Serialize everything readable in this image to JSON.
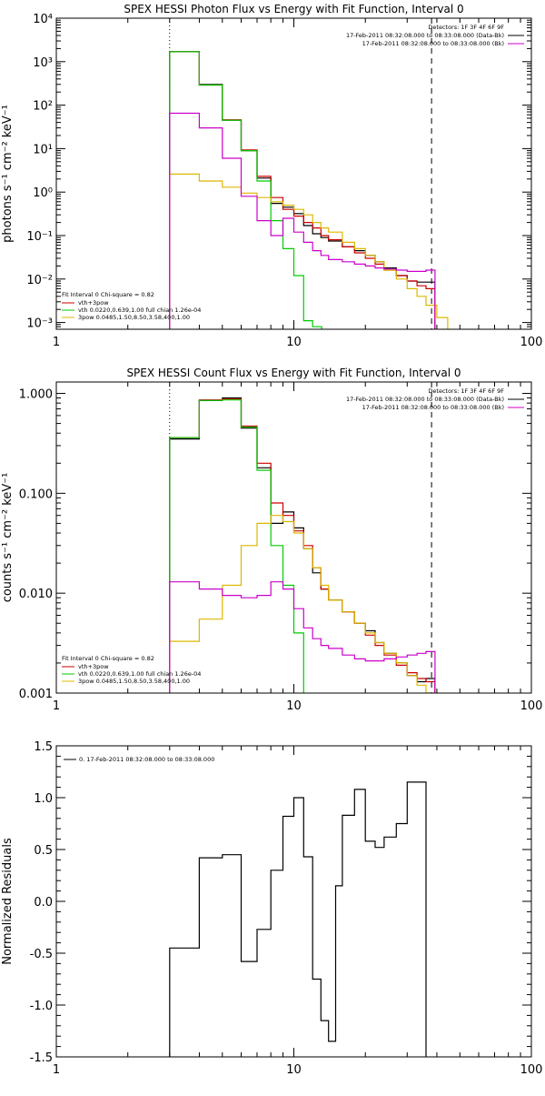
{
  "chart_data": [
    {
      "type": "line",
      "step": true,
      "title": "SPEX HESSI Photon Flux vs Energy with Fit Function, Interval 0",
      "ylabel": "photons s⁻¹ cm⁻² keV⁻¹",
      "xlabel": "",
      "xscale": "log",
      "yscale": "log",
      "xlim": [
        1,
        100
      ],
      "ylim": [
        0.0007,
        10000
      ],
      "x_ticks": [
        1,
        10,
        100
      ],
      "x_tick_labels": [
        "1",
        "10",
        "100"
      ],
      "y_ticks": [
        0.001,
        0.01,
        0.1,
        1,
        10,
        100,
        1000,
        10000
      ],
      "y_tick_labels": [
        "10⁻³",
        "10⁻²",
        "10⁻¹",
        "10⁰",
        "10¹",
        "10²",
        "10³",
        "10⁴"
      ],
      "vlines": [
        {
          "x": 3.0,
          "style": "dotted",
          "color": "#000000"
        },
        {
          "x": 38.0,
          "style": "dashed",
          "color": "#000000"
        }
      ],
      "legend_top_right": {
        "placement": "top-right",
        "lines": [
          "Detectors: 1F 3F 4F 6F 9F",
          "17-Feb-2011 08:32:08.000 to 08:33:08.000 (Data-Bk)",
          "17-Feb-2011 08:32:08.000 to 08:33:08.000 (Bk)"
        ],
        "colors": [
          "#000000",
          "#000000",
          "#cc00cc"
        ]
      },
      "legend_bottom_left": {
        "placement": "bottom-left",
        "header": "Fit Interval 0   Chi-square = 0.82",
        "lines": [
          "vth+3pow",
          "vth 0.0220,0.639,1.00  full chian 1.26e-04",
          "3pow 0.0485,1.50,8.50,3.58,400,1.00"
        ],
        "colors": [
          "#cc0000",
          "#00cc00",
          "#ddb800"
        ]
      },
      "series": [
        {
          "name": "Data-Bk",
          "color": "#000000",
          "x": [
            3.0,
            4.0,
            5.0,
            6.0,
            7.0,
            8.0,
            9.0,
            10.0,
            11.0,
            12.0,
            13.0,
            14.0,
            16.0,
            18.0,
            20.0,
            22.0,
            24.0,
            27.0,
            30.0,
            33.0,
            36.0
          ],
          "y": [
            1700,
            300,
            45,
            9,
            2.1,
            0.55,
            0.45,
            0.32,
            0.17,
            0.11,
            0.09,
            0.075,
            0.055,
            0.045,
            0.035,
            0.025,
            0.018,
            0.012,
            0.009,
            0.0085,
            0.0085
          ]
        },
        {
          "name": "vth+3pow",
          "color": "#cc0000",
          "x": [
            3.0,
            4.0,
            5.0,
            6.0,
            7.0,
            8.0,
            9.0,
            10.0,
            11.0,
            12.0,
            13.0,
            14.0,
            16.0,
            18.0,
            20.0,
            22.0,
            24.0,
            27.0,
            30.0,
            33.0,
            36.0
          ],
          "y": [
            1700,
            290,
            46,
            9.3,
            2.3,
            0.75,
            0.4,
            0.28,
            0.2,
            0.15,
            0.1,
            0.08,
            0.055,
            0.04,
            0.03,
            0.022,
            0.016,
            0.012,
            0.009,
            0.007,
            0.006
          ]
        },
        {
          "name": "vth",
          "color": "#00cc00",
          "x": [
            3.0,
            4.0,
            5.0,
            6.0,
            7.0,
            8.0,
            9.0,
            10.0,
            11.0,
            12.0
          ],
          "y": [
            1700,
            290,
            45,
            9,
            1.8,
            0.22,
            0.05,
            0.012,
            0.0011,
            0.0008
          ]
        },
        {
          "name": "3pow",
          "color": "#ddb800",
          "x": [
            3.0,
            4.0,
            5.0,
            6.0,
            7.0,
            8.0,
            9.0,
            10.0,
            11.0,
            12.0,
            13.0,
            14.0,
            16.0,
            18.0,
            20.0,
            22.0,
            24.0,
            27.0,
            30.0,
            33.0,
            36.0,
            40.0
          ],
          "y": [
            2.6,
            1.8,
            1.3,
            0.95,
            0.75,
            0.6,
            0.5,
            0.4,
            0.3,
            0.2,
            0.15,
            0.12,
            0.07,
            0.05,
            0.035,
            0.025,
            0.016,
            0.01,
            0.006,
            0.004,
            0.0025,
            0.0013
          ]
        },
        {
          "name": "Bk",
          "color": "#cc00cc",
          "x": [
            3.0,
            4.0,
            5.0,
            6.0,
            7.0,
            8.0,
            9.0,
            10.0,
            11.0,
            12.0,
            13.0,
            14.0,
            16.0,
            18.0,
            20.0,
            22.0,
            24.0,
            27.0,
            30.0,
            33.0,
            36.0
          ],
          "y": [
            65,
            30,
            6,
            0.8,
            0.22,
            0.1,
            0.25,
            0.12,
            0.07,
            0.045,
            0.035,
            0.028,
            0.025,
            0.022,
            0.02,
            0.018,
            0.017,
            0.016,
            0.015,
            0.015,
            0.016
          ]
        }
      ]
    },
    {
      "type": "line",
      "step": true,
      "title": "SPEX HESSI Count Flux vs Energy with Fit Function, Interval 0",
      "ylabel": "counts s⁻¹ cm⁻² keV⁻¹",
      "xlabel": "",
      "xscale": "log",
      "yscale": "log",
      "xlim": [
        1,
        100
      ],
      "ylim": [
        0.001,
        1.3
      ],
      "x_ticks": [
        1,
        10,
        100
      ],
      "x_tick_labels": [
        "1",
        "10",
        "100"
      ],
      "y_ticks": [
        0.001,
        0.01,
        0.1,
        1.0
      ],
      "y_tick_labels": [
        "0.001",
        "0.010",
        "0.100",
        "1.000"
      ],
      "vlines": [
        {
          "x": 3.0,
          "style": "dotted",
          "color": "#000000"
        },
        {
          "x": 38.0,
          "style": "dashed",
          "color": "#000000"
        }
      ],
      "legend_top_right": {
        "placement": "top-right",
        "lines": [
          "Detectors: 1F 3F 4F 6F 9F",
          "17-Feb-2011 08:32:08.000 to 08:33:08.000 (Data-Bk)",
          "17-Feb-2011 08:32:08.000 to 08:33:08.000 (Bk)"
        ],
        "colors": [
          "#000000",
          "#000000",
          "#cc00cc"
        ]
      },
      "legend_bottom_left": {
        "placement": "bottom-left",
        "header": "Fit Interval 0   Chi-square = 0.82",
        "lines": [
          "vth+3pow",
          "vth 0.0220,0.639,1.00  full chian 1.26e-04",
          "3pow 0.0485,1.50,8.50,3.58,400,1.00"
        ],
        "colors": [
          "#cc0000",
          "#00cc00",
          "#ddb800"
        ]
      },
      "series": [
        {
          "name": "Data-Bk",
          "color": "#000000",
          "x": [
            3.0,
            4.0,
            5.0,
            6.0,
            7.0,
            8.0,
            9.0,
            10.0,
            11.0,
            12.0,
            13.0,
            14.0,
            16.0,
            18.0,
            20.0,
            22.0,
            24.0,
            27.0,
            30.0,
            33.0,
            36.0
          ],
          "y": [
            0.35,
            0.85,
            0.9,
            0.45,
            0.18,
            0.05,
            0.065,
            0.045,
            0.028,
            0.016,
            0.011,
            0.0085,
            0.0065,
            0.005,
            0.0042,
            0.0032,
            0.0025,
            0.002,
            0.0015,
            0.0013,
            0.0014
          ]
        },
        {
          "name": "vth+3pow",
          "color": "#cc0000",
          "x": [
            3.0,
            4.0,
            5.0,
            6.0,
            7.0,
            8.0,
            9.0,
            10.0,
            11.0,
            12.0,
            13.0,
            14.0,
            16.0,
            18.0,
            20.0,
            22.0,
            24.0,
            27.0,
            30.0,
            33.0,
            36.0
          ],
          "y": [
            0.36,
            0.86,
            0.88,
            0.47,
            0.2,
            0.08,
            0.06,
            0.042,
            0.03,
            0.018,
            0.011,
            0.0085,
            0.0065,
            0.005,
            0.0038,
            0.003,
            0.0024,
            0.0019,
            0.0016,
            0.0014,
            0.0013
          ]
        },
        {
          "name": "vth",
          "color": "#00cc00",
          "x": [
            3.0,
            4.0,
            5.0,
            6.0,
            7.0,
            8.0,
            9.0,
            10.0,
            11.0,
            12.0
          ],
          "y": [
            0.36,
            0.85,
            0.86,
            0.46,
            0.17,
            0.03,
            0.012,
            0.004,
            0.0009,
            0.0008
          ]
        },
        {
          "name": "3pow",
          "color": "#ddb800",
          "x": [
            3.0,
            4.0,
            5.0,
            6.0,
            7.0,
            8.0,
            9.0,
            10.0,
            11.0,
            12.0,
            13.0,
            14.0,
            16.0,
            18.0,
            20.0,
            22.0,
            24.0,
            27.0,
            30.0,
            33.0,
            36.0
          ],
          "y": [
            0.0033,
            0.0055,
            0.012,
            0.03,
            0.05,
            0.06,
            0.052,
            0.04,
            0.028,
            0.018,
            0.012,
            0.0085,
            0.0065,
            0.005,
            0.004,
            0.0032,
            0.0025,
            0.002,
            0.0015,
            0.0012,
            0.001
          ]
        },
        {
          "name": "Bk",
          "color": "#cc00cc",
          "x": [
            3.0,
            4.0,
            5.0,
            6.0,
            7.0,
            8.0,
            9.0,
            10.0,
            11.0,
            12.0,
            13.0,
            14.0,
            16.0,
            18.0,
            20.0,
            22.0,
            24.0,
            27.0,
            30.0,
            33.0,
            36.0
          ],
          "y": [
            0.013,
            0.011,
            0.0095,
            0.009,
            0.0095,
            0.013,
            0.011,
            0.007,
            0.0045,
            0.0035,
            0.003,
            0.0028,
            0.0024,
            0.0022,
            0.0021,
            0.0021,
            0.0022,
            0.0023,
            0.0024,
            0.0025,
            0.0026
          ]
        }
      ]
    },
    {
      "type": "line",
      "step": true,
      "title": "",
      "ylabel": "Normalized Residuals",
      "xlabel": "",
      "xscale": "log",
      "yscale": "linear",
      "xlim": [
        1,
        100
      ],
      "ylim": [
        -1.5,
        1.5
      ],
      "x_ticks": [
        1,
        10,
        100
      ],
      "x_tick_labels": [
        "1",
        "10",
        "100"
      ],
      "y_ticks": [
        -1.5,
        -1.0,
        -0.5,
        0.0,
        0.5,
        1.0,
        1.5
      ],
      "y_tick_labels": [
        "-1.5",
        "-1.0",
        "-0.5",
        "0.0",
        "0.5",
        "1.0",
        "1.5"
      ],
      "vlines": [],
      "legend_top_left": {
        "placement": "top-left",
        "lines": [
          "0. 17-Feb-2011 08:32:08.000 to 08:33:08.000"
        ],
        "colors": [
          "#000000"
        ]
      },
      "series": [
        {
          "name": "0. 17-Feb-2011 08:32:08.000 to 08:33:08.000",
          "color": "#000000",
          "x": [
            3.0,
            4.0,
            5.0,
            6.0,
            7.0,
            8.0,
            9.0,
            10.0,
            11.0,
            12.0,
            13.0,
            14.0,
            15.0,
            16.0,
            18.0,
            20.0,
            22.0,
            24.0,
            27.0,
            30.0,
            33.0,
            36.0
          ],
          "y": [
            -0.45,
            0.42,
            0.45,
            -0.58,
            -0.27,
            0.3,
            0.82,
            1.0,
            0.43,
            -0.75,
            -1.15,
            -1.35,
            0.15,
            0.83,
            1.08,
            0.58,
            0.52,
            0.62,
            0.75,
            1.15,
            1.15,
            -1.55
          ]
        }
      ]
    }
  ]
}
